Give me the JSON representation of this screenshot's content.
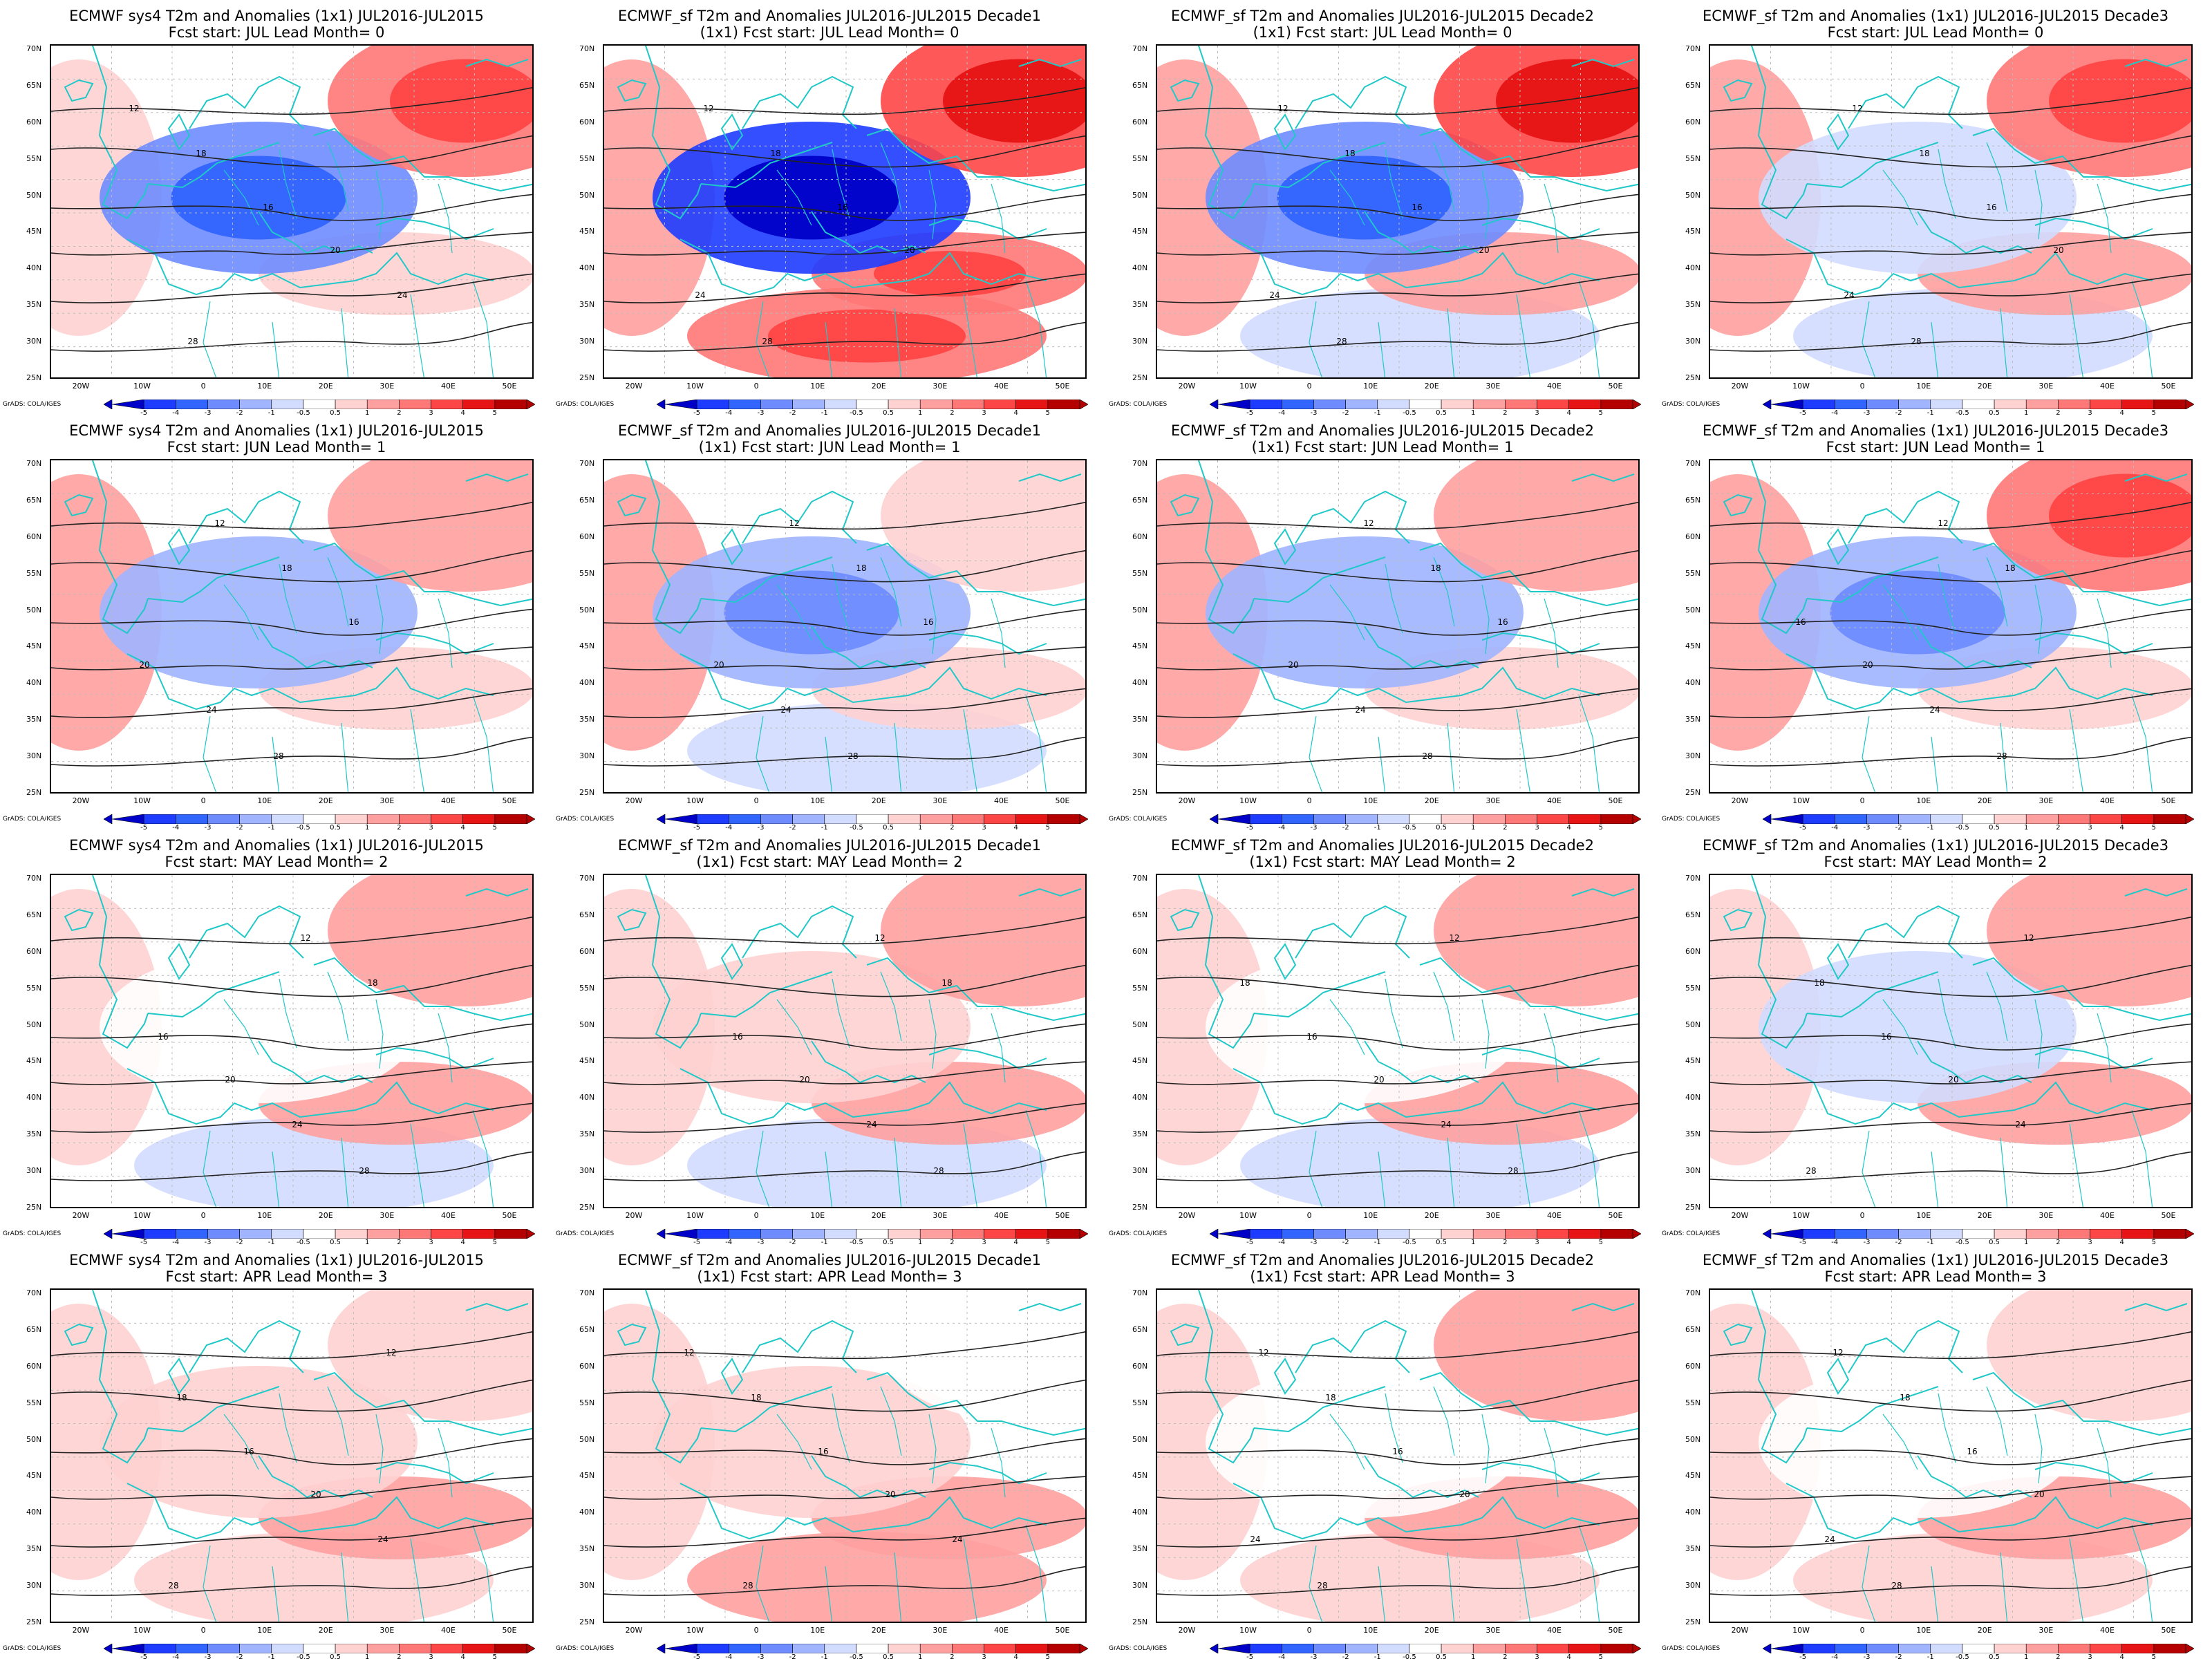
{
  "panels": [
    {
      "title1": "ECMWF sys4 T2m and Anomalies (1x1) JUL2016-JUL2015",
      "title2": "Fcst start: JUL  Lead Month= 0",
      "anomaly": {
        "north_east": 2.5,
        "central_europe": -2.5,
        "atlantic": 0.5,
        "north_africa": -0.5,
        "mediterranean": 0.5
      }
    },
    {
      "title1": "ECMWF_sf T2m and Anomalies JUL2016-JUL2015 Decade1",
      "title2": "(1x1) Fcst start: JUL  Lead Month= 0",
      "anomaly": {
        "north_east": 3.5,
        "central_europe": -4.5,
        "atlantic": 1.0,
        "north_africa": 2.0,
        "mediterranean": 2.0
      }
    },
    {
      "title1": "ECMWF_sf T2m and Anomalies JUL2016-JUL2015 Decade2",
      "title2": "(1x1) Fcst start: JUL  Lead Month= 0",
      "anomaly": {
        "north_east": 3.0,
        "central_europe": -2.5,
        "atlantic": 1.0,
        "north_africa": -1.0,
        "mediterranean": 1.0
      }
    },
    {
      "title1": "ECMWF_sf T2m and Anomalies (1x1) JUL2016-JUL2015 Decade3",
      "title2": "Fcst start: JUL  Lead Month= 0",
      "anomaly": {
        "north_east": 2.0,
        "central_europe": -1.0,
        "atlantic": 1.0,
        "north_africa": -1.0,
        "mediterranean": 1.5
      }
    },
    {
      "title1": "ECMWF sys4 T2m and Anomalies (1x1) JUL2016-JUL2015",
      "title2": "Fcst start: JUN  Lead Month= 1",
      "anomaly": {
        "north_east": 1.5,
        "central_europe": -1.5,
        "atlantic": 1.5,
        "north_africa": -0.5,
        "mediterranean": 0.5
      }
    },
    {
      "title1": "ECMWF_sf T2m and Anomalies JUL2016-JUL2015 Decade1",
      "title2": "(1x1) Fcst start: JUN  Lead Month= 1",
      "anomaly": {
        "north_east": 0.5,
        "central_europe": -2.0,
        "atlantic": 1.5,
        "north_africa": -1.0,
        "mediterranean": 0.5
      }
    },
    {
      "title1": "ECMWF_sf T2m and Anomalies JUL2016-JUL2015 Decade2",
      "title2": "(1x1) Fcst start: JUN  Lead Month= 1",
      "anomaly": {
        "north_east": 1.5,
        "central_europe": -1.5,
        "atlantic": 1.5,
        "north_africa": -0.5,
        "mediterranean": 0.5
      }
    },
    {
      "title1": "ECMWF_sf T2m and Anomalies (1x1) JUL2016-JUL2015 Decade3",
      "title2": "Fcst start: JUN  Lead Month= 1",
      "anomaly": {
        "north_east": 2.0,
        "central_europe": -2.0,
        "atlantic": 1.0,
        "north_africa": -0.5,
        "mediterranean": 0.5
      }
    },
    {
      "title1": "ECMWF sys4 T2m and Anomalies (1x1) JUL2016-JUL2015",
      "title2": "Fcst start: MAY  Lead Month= 2",
      "anomaly": {
        "north_east": 1.5,
        "central_europe": -0.5,
        "atlantic": 0.5,
        "north_africa": -1.0,
        "mediterranean": 1.5
      }
    },
    {
      "title1": "ECMWF_sf T2m and Anomalies JUL2016-JUL2015 Decade1",
      "title2": "(1x1) Fcst start: MAY  Lead Month= 2",
      "anomaly": {
        "north_east": 1.5,
        "central_europe": 0.5,
        "atlantic": 0.5,
        "north_africa": -1.0,
        "mediterranean": 1.0
      }
    },
    {
      "title1": "ECMWF_sf T2m and Anomalies JUL2016-JUL2015 Decade2",
      "title2": "(1x1) Fcst start: MAY  Lead Month= 2",
      "anomaly": {
        "north_east": 1.5,
        "central_europe": -0.5,
        "atlantic": 0.5,
        "north_africa": -1.0,
        "mediterranean": 1.5
      }
    },
    {
      "title1": "ECMWF_sf T2m and Anomalies (1x1) JUL2016-JUL2015 Decade3",
      "title2": "Fcst start: MAY  Lead Month= 2",
      "anomaly": {
        "north_east": 1.5,
        "central_europe": -1.0,
        "atlantic": 0.5,
        "north_africa": -0.5,
        "mediterranean": 1.5
      }
    },
    {
      "title1": "ECMWF sys4 T2m and Anomalies (1x1) JUL2016-JUL2015",
      "title2": "Fcst start: APR  Lead Month= 3",
      "anomaly": {
        "north_east": 0.5,
        "central_europe": 0.5,
        "atlantic": 0.5,
        "north_africa": 0.5,
        "mediterranean": 1.0
      }
    },
    {
      "title1": "ECMWF_sf T2m and Anomalies JUL2016-JUL2015 Decade1",
      "title2": "(1x1) Fcst start: APR  Lead Month= 3",
      "anomaly": {
        "north_east": -0.5,
        "central_europe": 0.5,
        "atlantic": 0.5,
        "north_africa": 1.0,
        "mediterranean": 1.5
      }
    },
    {
      "title1": "ECMWF_sf T2m and Anomalies JUL2016-JUL2015 Decade2",
      "title2": "(1x1) Fcst start: APR  Lead Month= 3",
      "anomaly": {
        "north_east": 1.0,
        "central_europe": -0.5,
        "atlantic": 0.5,
        "north_africa": 0.5,
        "mediterranean": 1.0
      }
    },
    {
      "title1": "ECMWF_sf T2m and Anomalies (1x1) JUL2016-JUL2015 Decade3",
      "title2": "Fcst start: APR  Lead Month= 3",
      "anomaly": {
        "north_east": 0.5,
        "central_europe": -0.5,
        "atlantic": 0.5,
        "north_africa": 0.5,
        "mediterranean": 1.5
      }
    }
  ],
  "lat_labels": [
    "70N",
    "65N",
    "60N",
    "55N",
    "50N",
    "45N",
    "40N",
    "35N",
    "30N",
    "25N"
  ],
  "lon_labels": [
    "20W",
    "10W",
    "0",
    "10E",
    "20E",
    "30E",
    "40E",
    "50E"
  ],
  "colorbar": {
    "ticks": [
      "-5",
      "-4",
      "-3",
      "-2",
      "-1",
      "-0.5",
      "0.5",
      "1",
      "2",
      "3",
      "4",
      "5"
    ],
    "colors": [
      "#0000c8",
      "#1e3cff",
      "#3264ff",
      "#6e8cff",
      "#a0b4ff",
      "#d2dcff",
      "#ffffff",
      "#ffd2d2",
      "#ffa0a0",
      "#ff7878",
      "#ff4646",
      "#e61414",
      "#b40000"
    ],
    "credit": "GrADS: COLA/IGES"
  },
  "contour_labels": [
    "12",
    "16",
    "18",
    "20",
    "24",
    "28"
  ],
  "coast_color": "#20c8c8"
}
